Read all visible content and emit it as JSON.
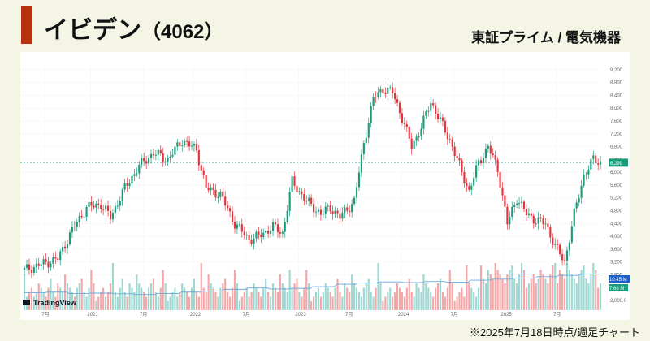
{
  "header": {
    "company": "イビデン",
    "code": "（4062）",
    "market": "東証プライム / 電気機器"
  },
  "footer": {
    "note": "※2025年7月18日時点/週足チャート"
  },
  "watermark": "TradingView",
  "chart_data": {
    "type": "candlestick",
    "interval": "weekly",
    "y_ticks": [
      "9,200",
      "8,800",
      "8,400",
      "8,000",
      "7,600",
      "7,200",
      "6,800",
      "6,400",
      "6,000",
      "5,600",
      "5,200",
      "4,800",
      "4,400",
      "4,000",
      "3,600",
      "3,200",
      "2,800",
      "2,000.0"
    ],
    "x_ticks": [
      "7月",
      "2021",
      "7月",
      "2022",
      "7月",
      "2023",
      "7月",
      "2024",
      "7月",
      "2025",
      "7月"
    ],
    "y_range": [
      2000,
      9400
    ],
    "last_price_label": "6,299",
    "last_price": 6299,
    "volume_average_label": "10.45 M",
    "volume_label": "7.66 M",
    "close_path": [
      [
        0,
        2950
      ],
      [
        8,
        3150
      ],
      [
        14,
        3300
      ],
      [
        20,
        4200
      ],
      [
        26,
        4900
      ],
      [
        32,
        5000
      ],
      [
        36,
        4600
      ],
      [
        42,
        5500
      ],
      [
        48,
        6200
      ],
      [
        54,
        6600
      ],
      [
        60,
        6400
      ],
      [
        66,
        7000
      ],
      [
        72,
        6700
      ],
      [
        76,
        5500
      ],
      [
        82,
        5300
      ],
      [
        88,
        4400
      ],
      [
        94,
        3900
      ],
      [
        98,
        4000
      ],
      [
        104,
        4300
      ],
      [
        108,
        4100
      ],
      [
        112,
        5700
      ],
      [
        118,
        5100
      ],
      [
        124,
        4700
      ],
      [
        128,
        4900
      ],
      [
        132,
        4600
      ],
      [
        138,
        5100
      ],
      [
        142,
        6900
      ],
      [
        146,
        8300
      ],
      [
        150,
        8600
      ],
      [
        154,
        8500
      ],
      [
        158,
        7700
      ],
      [
        162,
        6800
      ],
      [
        166,
        7400
      ],
      [
        170,
        8200
      ],
      [
        174,
        7600
      ],
      [
        178,
        7000
      ],
      [
        182,
        6200
      ],
      [
        186,
        5400
      ],
      [
        190,
        6300
      ],
      [
        194,
        6800
      ],
      [
        198,
        6100
      ],
      [
        202,
        4400
      ],
      [
        206,
        5200
      ],
      [
        210,
        4700
      ],
      [
        214,
        4500
      ],
      [
        218,
        4400
      ],
      [
        222,
        3700
      ],
      [
        226,
        3200
      ],
      [
        230,
        4700
      ],
      [
        234,
        5900
      ],
      [
        238,
        6400
      ],
      [
        241,
        6300
      ]
    ],
    "volume_pattern": [
      2,
      3,
      4,
      5,
      3,
      4,
      6,
      5,
      4,
      3,
      5,
      7,
      4,
      3,
      6,
      5,
      4,
      8,
      6,
      5,
      4,
      3,
      5,
      6,
      7,
      4,
      3,
      5,
      9,
      6
    ],
    "volume_avg_pattern": [
      5.1,
      5.3,
      4.9,
      5.0,
      4.8,
      4.6,
      4.9,
      5.3,
      5.6,
      6.1,
      6.5,
      6.2,
      6.4,
      6.9,
      7.6,
      8.0,
      8.3,
      8.1,
      8.4,
      8.2,
      8.8,
      9.1,
      9.4,
      9.8,
      10.2,
      10.6,
      10.45
    ]
  }
}
